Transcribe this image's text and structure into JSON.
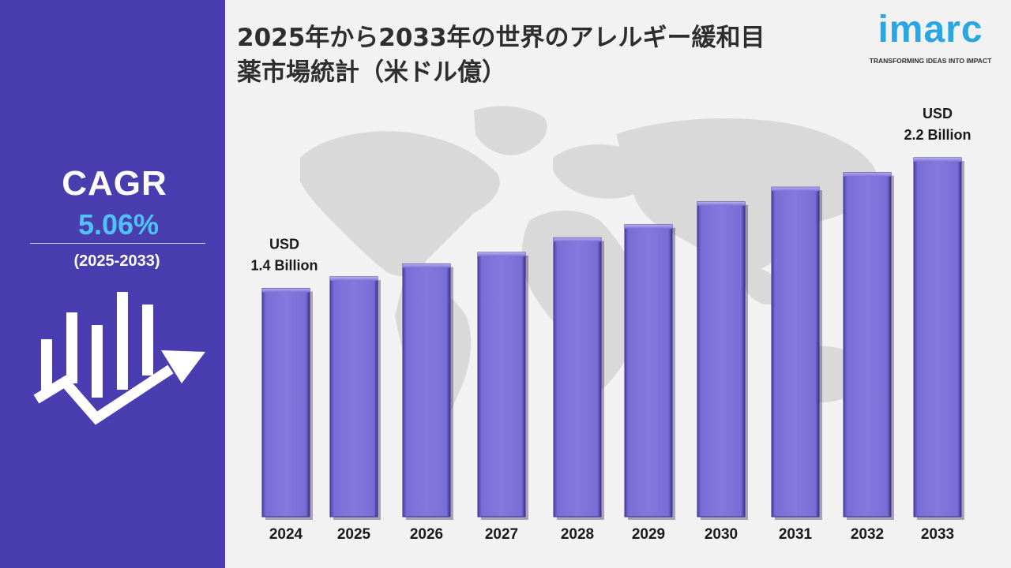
{
  "header": {
    "title_line1": "2025年から2033年の世界のアレルギー緩和目",
    "title_line2": "薬市場統計（米ドル億）"
  },
  "logo": {
    "wordmark": "imarc",
    "tagline": "TRANSFORMING IDEAS INTO IMPACT",
    "color": "#2aa7e3"
  },
  "sidebar": {
    "cagr_label": "CAGR",
    "cagr_value": "5.06%",
    "period": "(2025-2033)",
    "background": "#4a3db0",
    "value_color": "#4fc3f7",
    "icon": "bar-growth-arrow-icon"
  },
  "chart_data": {
    "type": "bar",
    "categories": [
      "2024",
      "2025",
      "2026",
      "2027",
      "2028",
      "2029",
      "2030",
      "2031",
      "2032",
      "2033"
    ],
    "values": [
      1.4,
      1.47,
      1.55,
      1.62,
      1.71,
      1.79,
      1.93,
      2.02,
      2.11,
      2.2
    ],
    "unit": "USD Billion",
    "annotations": [
      {
        "category": "2024",
        "line1": "USD",
        "line2": "1.4 Billion"
      },
      {
        "category": "2033",
        "line1": "USD",
        "line2": "2.2 Billion"
      }
    ],
    "bar_color": "#7b6ed8",
    "grid": false,
    "legend": "none"
  }
}
